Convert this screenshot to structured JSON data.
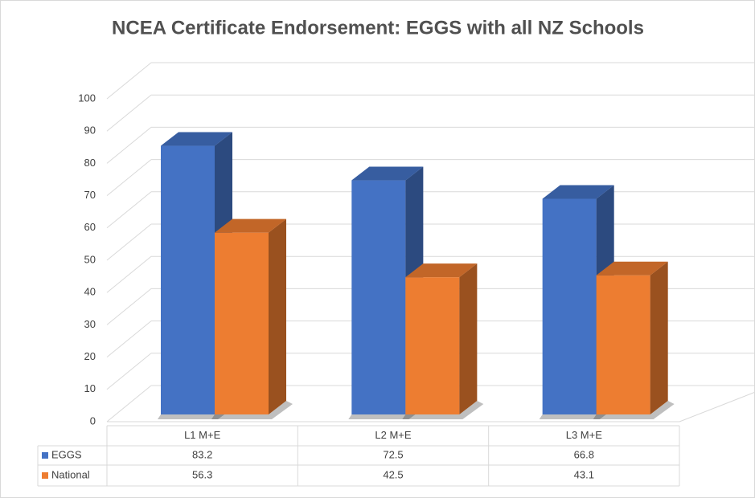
{
  "chart_data": {
    "type": "bar3d",
    "title": "NCEA Certificate Endorsement: EGGS with all NZ Schools",
    "categories": [
      "L1 M+E",
      "L2 M+E",
      "L3 M+E"
    ],
    "series": [
      {
        "name": "EGGS",
        "color": "#4472c4",
        "values": [
          83.2,
          72.5,
          66.8
        ]
      },
      {
        "name": "National",
        "color": "#ed7d31",
        "values": [
          56.3,
          42.5,
          43.1
        ]
      }
    ],
    "ylim": [
      0,
      100
    ],
    "yticks": [
      0,
      10,
      20,
      30,
      40,
      50,
      60,
      70,
      80,
      90,
      100
    ],
    "grid": true,
    "data_table": true
  }
}
